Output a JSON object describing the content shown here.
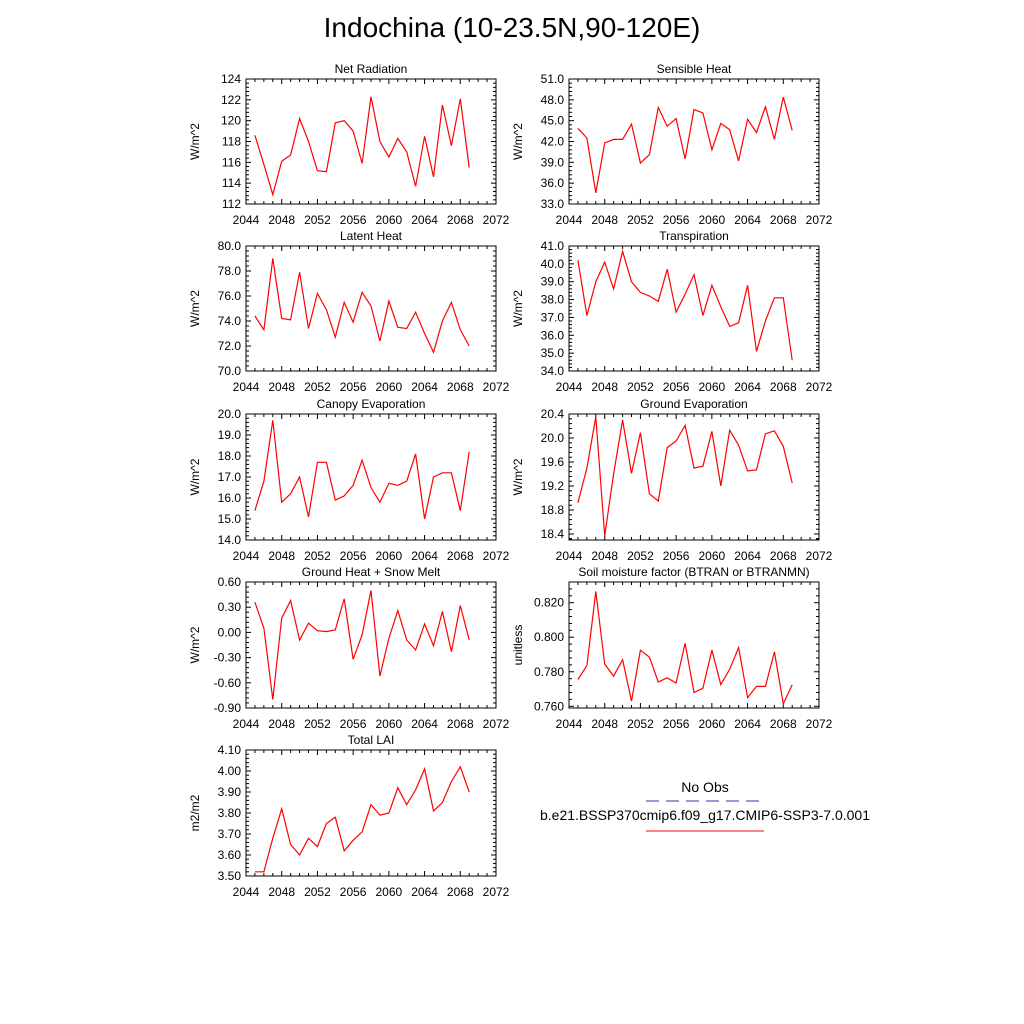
{
  "figure": {
    "title": "Indochina (10-23.5N,90-120E)"
  },
  "legend": {
    "entries": [
      {
        "label": "No Obs",
        "color": "#3333aa",
        "style": "dashed"
      },
      {
        "label": "b.e21.BSSP370cmip6.f09_g17.CMIP6-SSP3-7.0.001",
        "color": "#ff0000",
        "style": "solid"
      }
    ]
  },
  "chart_data": [
    {
      "type": "line",
      "title": "Net Radiation",
      "ylabel": "W/m^2",
      "xlim": [
        2044,
        2072
      ],
      "xticks": [
        2044,
        2048,
        2052,
        2056,
        2060,
        2064,
        2068,
        2072
      ],
      "ylim": [
        112,
        124
      ],
      "yticks": [
        112,
        114,
        116,
        118,
        120,
        122,
        124
      ],
      "ydecimals": 0,
      "x": [
        2045,
        2046,
        2047,
        2048,
        2049,
        2050,
        2051,
        2052,
        2053,
        2054,
        2055,
        2056,
        2057,
        2058,
        2059,
        2060,
        2061,
        2062,
        2063,
        2064,
        2065,
        2066,
        2067,
        2068,
        2069
      ],
      "series": [
        {
          "color": "#ff0000",
          "values": [
            118.6,
            115.8,
            112.9,
            116.1,
            116.7,
            120.2,
            118.0,
            115.2,
            115.1,
            119.8,
            120.0,
            119.0,
            115.9,
            122.3,
            118.0,
            116.5,
            118.3,
            117.0,
            113.7,
            118.5,
            114.6,
            121.5,
            117.6,
            122.1,
            115.5
          ]
        }
      ]
    },
    {
      "type": "line",
      "title": "Sensible Heat",
      "ylabel": "W/m^2",
      "xlim": [
        2044,
        2072
      ],
      "xticks": [
        2044,
        2048,
        2052,
        2056,
        2060,
        2064,
        2068,
        2072
      ],
      "ylim": [
        33,
        51
      ],
      "yticks": [
        33,
        36,
        39,
        42,
        45,
        48,
        51
      ],
      "ydecimals": 1,
      "x": [
        2045,
        2046,
        2047,
        2048,
        2049,
        2050,
        2051,
        2052,
        2053,
        2054,
        2055,
        2056,
        2057,
        2058,
        2059,
        2060,
        2061,
        2062,
        2063,
        2064,
        2065,
        2066,
        2067,
        2068,
        2069
      ],
      "series": [
        {
          "color": "#ff0000",
          "values": [
            43.9,
            42.5,
            34.6,
            41.8,
            42.3,
            42.3,
            44.5,
            38.9,
            40.1,
            46.9,
            44.2,
            45.3,
            39.5,
            46.6,
            46.1,
            40.8,
            44.6,
            43.7,
            39.2,
            45.2,
            43.3,
            47.0,
            42.3,
            48.4,
            43.6
          ]
        }
      ]
    },
    {
      "type": "line",
      "title": "Latent Heat",
      "ylabel": "W/m^2",
      "xlim": [
        2044,
        2072
      ],
      "xticks": [
        2044,
        2048,
        2052,
        2056,
        2060,
        2064,
        2068,
        2072
      ],
      "ylim": [
        70,
        80
      ],
      "yticks": [
        70,
        72,
        74,
        76,
        78,
        80
      ],
      "ydecimals": 1,
      "x": [
        2045,
        2046,
        2047,
        2048,
        2049,
        2050,
        2051,
        2052,
        2053,
        2054,
        2055,
        2056,
        2057,
        2058,
        2059,
        2060,
        2061,
        2062,
        2063,
        2064,
        2065,
        2066,
        2067,
        2068,
        2069
      ],
      "series": [
        {
          "color": "#ff0000",
          "values": [
            74.4,
            73.3,
            79.0,
            74.2,
            74.1,
            77.9,
            73.4,
            76.2,
            74.9,
            72.7,
            75.5,
            73.9,
            76.3,
            75.2,
            72.4,
            75.6,
            73.5,
            73.4,
            74.7,
            73.0,
            71.5,
            74.0,
            75.5,
            73.3,
            72.0
          ]
        }
      ]
    },
    {
      "type": "line",
      "title": "Transpiration",
      "ylabel": "W/m^2",
      "xlim": [
        2044,
        2072
      ],
      "xticks": [
        2044,
        2048,
        2052,
        2056,
        2060,
        2064,
        2068,
        2072
      ],
      "ylim": [
        34,
        41
      ],
      "yticks": [
        34,
        35,
        36,
        37,
        38,
        39,
        40,
        41
      ],
      "ydecimals": 1,
      "x": [
        2045,
        2046,
        2047,
        2048,
        2049,
        2050,
        2051,
        2052,
        2053,
        2054,
        2055,
        2056,
        2057,
        2058,
        2059,
        2060,
        2061,
        2062,
        2063,
        2064,
        2065,
        2066,
        2067,
        2068,
        2069
      ],
      "series": [
        {
          "color": "#ff0000",
          "values": [
            40.2,
            37.1,
            39.0,
            40.1,
            38.6,
            40.7,
            39.0,
            38.4,
            38.2,
            37.9,
            39.7,
            37.3,
            38.3,
            39.4,
            37.1,
            38.8,
            37.6,
            36.5,
            36.7,
            38.8,
            35.1,
            36.8,
            38.1,
            38.1,
            34.6
          ]
        }
      ]
    },
    {
      "type": "line",
      "title": "Canopy Evaporation",
      "ylabel": "W/m^2",
      "xlim": [
        2044,
        2072
      ],
      "xticks": [
        2044,
        2048,
        2052,
        2056,
        2060,
        2064,
        2068,
        2072
      ],
      "ylim": [
        14,
        20
      ],
      "yticks": [
        14,
        15,
        16,
        17,
        18,
        19,
        20
      ],
      "ydecimals": 1,
      "x": [
        2045,
        2046,
        2047,
        2048,
        2049,
        2050,
        2051,
        2052,
        2053,
        2054,
        2055,
        2056,
        2057,
        2058,
        2059,
        2060,
        2061,
        2062,
        2063,
        2064,
        2065,
        2066,
        2067,
        2068,
        2069
      ],
      "series": [
        {
          "color": "#ff0000",
          "values": [
            15.4,
            16.8,
            19.7,
            15.8,
            16.2,
            17.0,
            15.1,
            17.7,
            17.7,
            15.9,
            16.1,
            16.6,
            17.8,
            16.5,
            15.8,
            16.7,
            16.6,
            16.8,
            18.1,
            15.0,
            17.0,
            17.2,
            17.2,
            15.4,
            18.2
          ]
        }
      ]
    },
    {
      "type": "line",
      "title": "Ground Evaporation",
      "ylabel": "W/m^2",
      "xlim": [
        2044,
        2072
      ],
      "xticks": [
        2044,
        2048,
        2052,
        2056,
        2060,
        2064,
        2068,
        2072
      ],
      "ylim": [
        18.3,
        20.4
      ],
      "yticks": [
        18.4,
        18.8,
        19.2,
        19.6,
        20.0,
        20.4
      ],
      "ydecimals": 1,
      "x": [
        2045,
        2046,
        2047,
        2048,
        2049,
        2050,
        2051,
        2052,
        2053,
        2054,
        2055,
        2056,
        2057,
        2058,
        2059,
        2060,
        2061,
        2062,
        2063,
        2064,
        2065,
        2066,
        2067,
        2068,
        2069
      ],
      "series": [
        {
          "color": "#ff0000",
          "values": [
            18.92,
            19.5,
            20.35,
            18.37,
            19.4,
            20.3,
            19.41,
            20.09,
            19.07,
            18.95,
            19.84,
            19.95,
            20.21,
            19.5,
            19.53,
            20.11,
            19.2,
            20.13,
            19.88,
            19.45,
            19.47,
            20.07,
            20.12,
            19.86,
            19.25
          ]
        }
      ]
    },
    {
      "type": "line",
      "title": "Ground Heat + Snow Melt",
      "ylabel": "W/m^2",
      "xlim": [
        2044,
        2072
      ],
      "xticks": [
        2044,
        2048,
        2052,
        2056,
        2060,
        2064,
        2068,
        2072
      ],
      "ylim": [
        -0.9,
        0.6
      ],
      "yticks": [
        -0.9,
        -0.6,
        -0.3,
        0.0,
        0.3,
        0.6
      ],
      "ydecimals": 2,
      "x": [
        2045,
        2046,
        2047,
        2048,
        2049,
        2050,
        2051,
        2052,
        2053,
        2054,
        2055,
        2056,
        2057,
        2058,
        2059,
        2060,
        2061,
        2062,
        2063,
        2064,
        2065,
        2066,
        2067,
        2068,
        2069
      ],
      "series": [
        {
          "color": "#ff0000",
          "values": [
            0.36,
            0.05,
            -0.8,
            0.17,
            0.38,
            -0.09,
            0.11,
            0.02,
            0.01,
            0.03,
            0.4,
            -0.32,
            -0.03,
            0.5,
            -0.52,
            -0.07,
            0.26,
            -0.09,
            -0.21,
            0.1,
            -0.16,
            0.25,
            -0.23,
            0.32,
            -0.09
          ]
        }
      ]
    },
    {
      "type": "line",
      "title": "Soil moisture factor (BTRAN or BTRANMN)",
      "ylabel": "unitless",
      "xlim": [
        2044,
        2072
      ],
      "xticks": [
        2044,
        2048,
        2052,
        2056,
        2060,
        2064,
        2068,
        2072
      ],
      "ylim": [
        0.759,
        0.832
      ],
      "yticks": [
        0.76,
        0.78,
        0.8,
        0.82
      ],
      "ydecimals": 3,
      "x": [
        2045,
        2046,
        2047,
        2048,
        2049,
        2050,
        2051,
        2052,
        2053,
        2054,
        2055,
        2056,
        2057,
        2058,
        2059,
        2060,
        2061,
        2062,
        2063,
        2064,
        2065,
        2066,
        2067,
        2068,
        2069
      ],
      "series": [
        {
          "color": "#ff0000",
          "values": [
            0.7755,
            0.7835,
            0.8265,
            0.7845,
            0.7775,
            0.787,
            0.763,
            0.7925,
            0.7885,
            0.774,
            0.7765,
            0.7735,
            0.7965,
            0.768,
            0.7705,
            0.7925,
            0.7725,
            0.7815,
            0.794,
            0.765,
            0.7715,
            0.7715,
            0.7915,
            0.7615,
            0.7725
          ]
        }
      ]
    },
    {
      "type": "line",
      "title": "Total LAI",
      "ylabel": "m2/m2",
      "xlim": [
        2044,
        2072
      ],
      "xticks": [
        2044,
        2048,
        2052,
        2056,
        2060,
        2064,
        2068,
        2072
      ],
      "ylim": [
        3.5,
        4.1
      ],
      "yticks": [
        3.5,
        3.6,
        3.7,
        3.8,
        3.9,
        4.0,
        4.1
      ],
      "ydecimals": 2,
      "x": [
        2045,
        2046,
        2047,
        2048,
        2049,
        2050,
        2051,
        2052,
        2053,
        2054,
        2055,
        2056,
        2057,
        2058,
        2059,
        2060,
        2061,
        2062,
        2063,
        2064,
        2065,
        2066,
        2067,
        2068,
        2069
      ],
      "series": [
        {
          "color": "#ff0000",
          "values": [
            3.52,
            3.52,
            3.68,
            3.82,
            3.65,
            3.6,
            3.68,
            3.64,
            3.75,
            3.78,
            3.62,
            3.67,
            3.71,
            3.84,
            3.79,
            3.8,
            3.92,
            3.84,
            3.91,
            4.01,
            3.81,
            3.85,
            3.95,
            4.02,
            3.9
          ]
        }
      ]
    }
  ]
}
